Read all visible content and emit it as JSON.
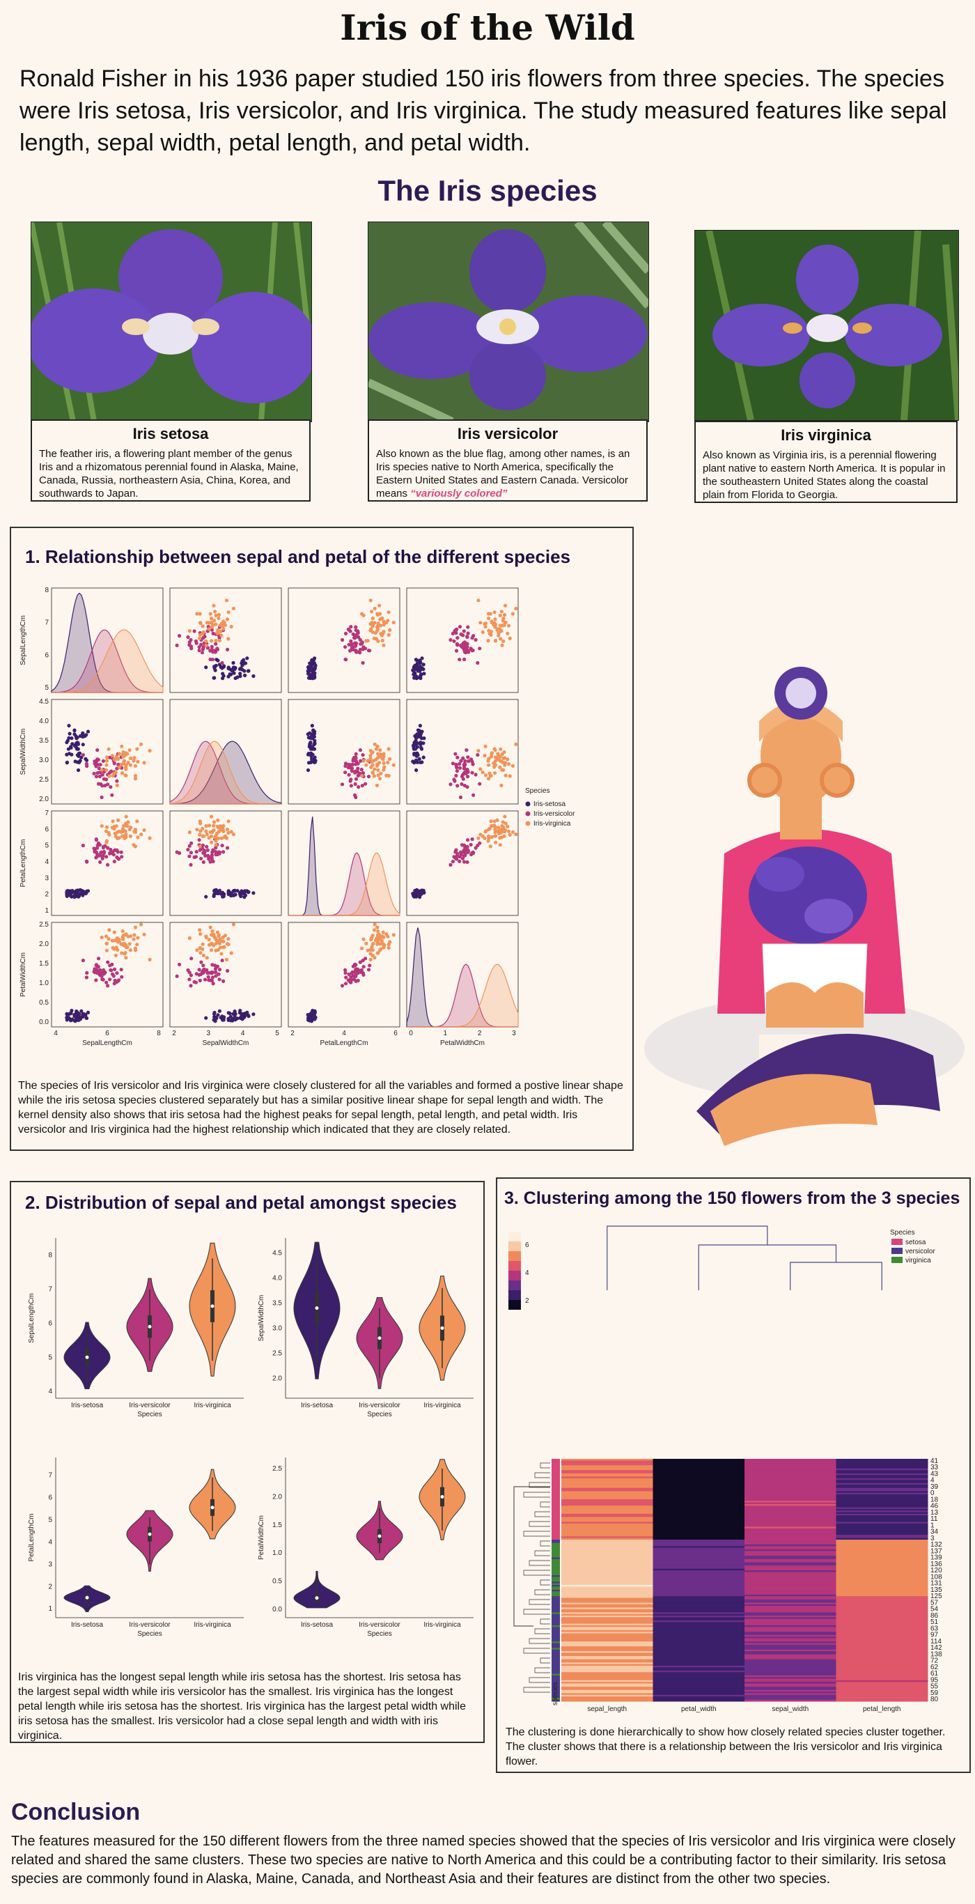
{
  "title": "Iris of the Wild",
  "intro": "Ronald Fisher in his 1936 paper studied 150 iris flowers from three species. The species were Iris setosa, Iris versicolor, and Iris virginica. The study measured features like sepal length, sepal width, petal length, and petal width.",
  "species_heading": "The Iris species",
  "species": [
    {
      "name": "Iris setosa",
      "text": "The feather iris, a flowering plant member of the genus Iris and a rhizomatous perennial found in Alaska, Maine, Canada, Russia, northeastern Asia, China, Korea, and southwards to Japan."
    },
    {
      "name": "Iris versicolor",
      "text": "Also known as the blue flag, among other names, is an Iris species native to North America, specifically the Eastern United States and Eastern Canada. Versicolor means",
      "emphasis": "“variously colored”"
    },
    {
      "name": "Iris virginica",
      "text": "Also known as Virginia iris, is a perennial flowering plant native to eastern North America. It is popular in the southeastern United States along the coastal plain from Florida to Georgia."
    }
  ],
  "section1": {
    "title": "1. Relationship between sepal and petal of the different species",
    "caption": "The species of Iris versicolor and Iris virginica were closely clustered for all the variables and formed a postive linear shape while the iris setosa species clustered separately but has a similar positive linear shape for sepal length and width. The kernel density also shows that iris setosa had the highest peaks for sepal length, petal length, and petal width. Iris versicolor and Iris virginica had the highest relationship which indicated that they are closely related."
  },
  "section2": {
    "title": "2. Distribution of sepal and petal amongst species",
    "caption": "Iris virginica has the longest sepal length while iris setosa has the shortest. Iris setosa has the largest sepal width while iris versicolor has the smallest. Iris virginica has the longest petal length while iris setosa has the shortest. Iris virginica has the largest petal width while iris setosa has the smallest. Iris versicolor had a close sepal length and width with iris virginica."
  },
  "section3": {
    "title": "3. Clustering among the 150 flowers from the 3 species",
    "caption": "The clustering is done hierarchically to show how closely related species cluster together. The cluster shows that there is a relationship between the Iris versicolor and Iris virginica flower."
  },
  "conclusion_title": "Conclusion",
  "conclusion_text": "The features measured for the 150 different flowers from the three named species  showed that the species of Iris versicolor and Iris virginica were closely related and shared the same clusters. These two species are native to North America and this could be a contributing factor to their similarity. Iris setosa species are commonly found in Alaska, Maine, Canada, and Northeast Asia and their features are distinct from the other two species.",
  "colors": {
    "setosa": "#3b1f6b",
    "versicolor": "#b5367a",
    "virginica": "#f0945a",
    "heading": "#2b1d52"
  },
  "chart_data": [
    {
      "type": "scatter",
      "variables": [
        "SepalLengthCm",
        "SepalWidthCm",
        "PetalLengthCm",
        "PetalWidthCm"
      ],
      "ranges": {
        "SepalLengthCm": [
          4.0,
          8.0
        ],
        "SepalWidthCm": [
          2.0,
          4.5
        ],
        "PetalLengthCm": [
          0.0,
          7.0
        ],
        "PetalWidthCm": [
          0.0,
          2.5
        ]
      },
      "x_ticks": {
        "SepalLengthCm": [
          "4",
          "6",
          "8"
        ],
        "SepalWidthCm": [
          "2",
          "3",
          "4",
          "5"
        ],
        "PetalLengthCm": [
          "2",
          "4",
          "6"
        ],
        "PetalWidthCm": [
          "0",
          "1",
          "2",
          "3"
        ]
      },
      "y_ticks": {
        "SepalLengthCm": [
          "5",
          "6",
          "7",
          "8"
        ],
        "SepalWidthCm": [
          "2.0",
          "2.5",
          "3.0",
          "3.5",
          "4.0",
          "4.5"
        ],
        "PetalLengthCm": [
          "1",
          "2",
          "3",
          "4",
          "5",
          "6",
          "7"
        ],
        "PetalWidthCm": [
          "0.0",
          "0.5",
          "1.0",
          "1.5",
          "2.0",
          "2.5"
        ]
      },
      "legend_title": "Species",
      "legend_position": "right",
      "series": [
        {
          "name": "Iris-setosa",
          "means": [
            5.0,
            3.4,
            1.5,
            0.25
          ],
          "sd": [
            0.35,
            0.38,
            0.17,
            0.1
          ]
        },
        {
          "name": "Iris-versicolor",
          "means": [
            5.9,
            2.8,
            4.3,
            1.33
          ],
          "sd": [
            0.5,
            0.31,
            0.47,
            0.2
          ]
        },
        {
          "name": "Iris-virginica",
          "means": [
            6.6,
            3.0,
            5.55,
            2.03
          ],
          "sd": [
            0.63,
            0.32,
            0.55,
            0.27
          ]
        }
      ]
    },
    {
      "type": "violin",
      "categories": [
        "Iris-setosa",
        "Iris-versicolor",
        "Iris-virginica"
      ],
      "xlabel": "Species",
      "panels": [
        {
          "ylabel": "SepalLengthCm",
          "ylim": [
            3.8,
            8.5
          ],
          "yticks": [
            "4",
            "5",
            "6",
            "7",
            "8"
          ],
          "medians": [
            5.0,
            5.9,
            6.5
          ],
          "ranges": [
            [
              4.3,
              5.8
            ],
            [
              4.9,
              7.0
            ],
            [
              4.9,
              7.9
            ]
          ]
        },
        {
          "ylabel": "SepalWidthCm",
          "ylim": [
            1.6,
            4.8
          ],
          "yticks": [
            "2.0",
            "2.5",
            "3.0",
            "3.5",
            "4.0",
            "4.5"
          ],
          "medians": [
            3.4,
            2.8,
            3.0
          ],
          "ranges": [
            [
              2.3,
              4.4
            ],
            [
              2.0,
              3.4
            ],
            [
              2.2,
              3.8
            ]
          ]
        },
        {
          "ylabel": "PetalLengthCm",
          "ylim": [
            0.6,
            7.8
          ],
          "yticks": [
            "1",
            "2",
            "3",
            "4",
            "5",
            "6",
            "7"
          ],
          "medians": [
            1.5,
            4.35,
            5.55
          ],
          "ranges": [
            [
              1.0,
              1.9
            ],
            [
              3.0,
              5.1
            ],
            [
              4.5,
              6.9
            ]
          ]
        },
        {
          "ylabel": "PetalWidthCm",
          "ylim": [
            -0.15,
            2.7
          ],
          "yticks": [
            "0.0",
            "0.5",
            "1.0",
            "1.5",
            "2.0",
            "2.5"
          ],
          "medians": [
            0.2,
            1.3,
            2.0
          ],
          "ranges": [
            [
              0.1,
              0.6
            ],
            [
              1.0,
              1.8
            ],
            [
              1.4,
              2.5
            ]
          ]
        }
      ]
    },
    {
      "type": "heatmap",
      "columns": [
        "sepal_length",
        "petal_width",
        "sepal_width",
        "petal_length"
      ],
      "row_label": "species",
      "row_ticks": [
        "41",
        "33",
        "43",
        "4",
        "39",
        "0",
        "18",
        "46",
        "13",
        "11",
        "1",
        "34",
        "3",
        "132",
        "137",
        "139",
        "136",
        "120",
        "108",
        "131",
        "135",
        "125",
        "57",
        "54",
        "86",
        "51",
        "63",
        "97",
        "114",
        "142",
        "138",
        "72",
        "62",
        "61",
        "95",
        "55",
        "59",
        "80"
      ],
      "colorbar_ticks": [
        "2",
        "4",
        "6"
      ],
      "legend_title": "Species",
      "legend": [
        "setosa",
        "versicolor",
        "virginica"
      ],
      "legend_colors": [
        "#d9457a",
        "#4b3a8c",
        "#3f8a35"
      ],
      "groups": [
        {
          "name": "setosa",
          "rows": 50,
          "values": [
            5.0,
            0.25,
            3.4,
            1.5
          ]
        },
        {
          "name": "virginica",
          "rows": 35,
          "values": [
            6.6,
            2.0,
            3.0,
            5.5
          ]
        },
        {
          "name": "versicolor",
          "rows": 65,
          "values": [
            5.9,
            1.3,
            2.8,
            4.3
          ]
        }
      ]
    }
  ]
}
